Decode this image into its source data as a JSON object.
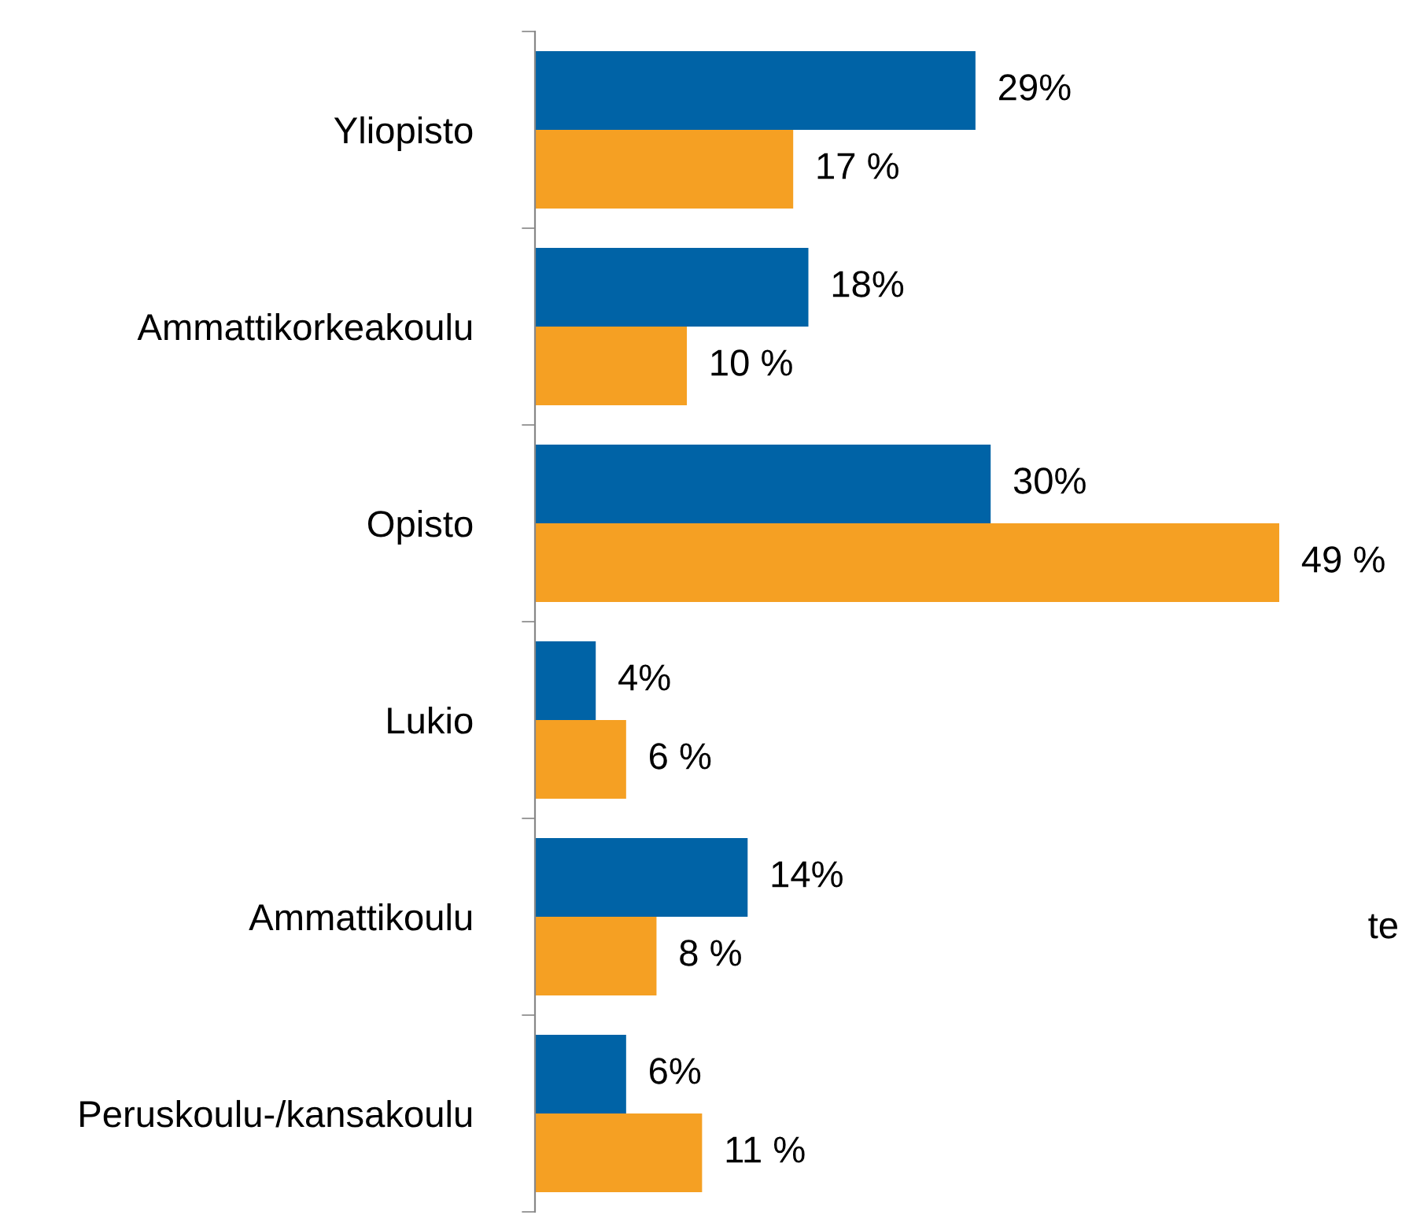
{
  "chart_data": {
    "type": "bar",
    "orientation": "horizontal",
    "categories": [
      "Yliopisto",
      "Ammattikorkeakoulu",
      "Opisto",
      "Lukio",
      "Ammattikoulu",
      "Peruskoulu-/kansakoulu"
    ],
    "series": [
      {
        "color": "#0063a6",
        "values": [
          29,
          18,
          30,
          4,
          14,
          6
        ],
        "value_labels": [
          "29%",
          "18%",
          "30%",
          "4%",
          "14%",
          "6%"
        ]
      },
      {
        "color": "#f5a023",
        "values": [
          17,
          10,
          49,
          6,
          8,
          11
        ],
        "value_labels": [
          "17 %",
          "10 %",
          "49 %",
          "6 %",
          "8 %",
          "11 %"
        ]
      }
    ],
    "annotations": [
      "te"
    ],
    "grid": false,
    "legend": false
  }
}
